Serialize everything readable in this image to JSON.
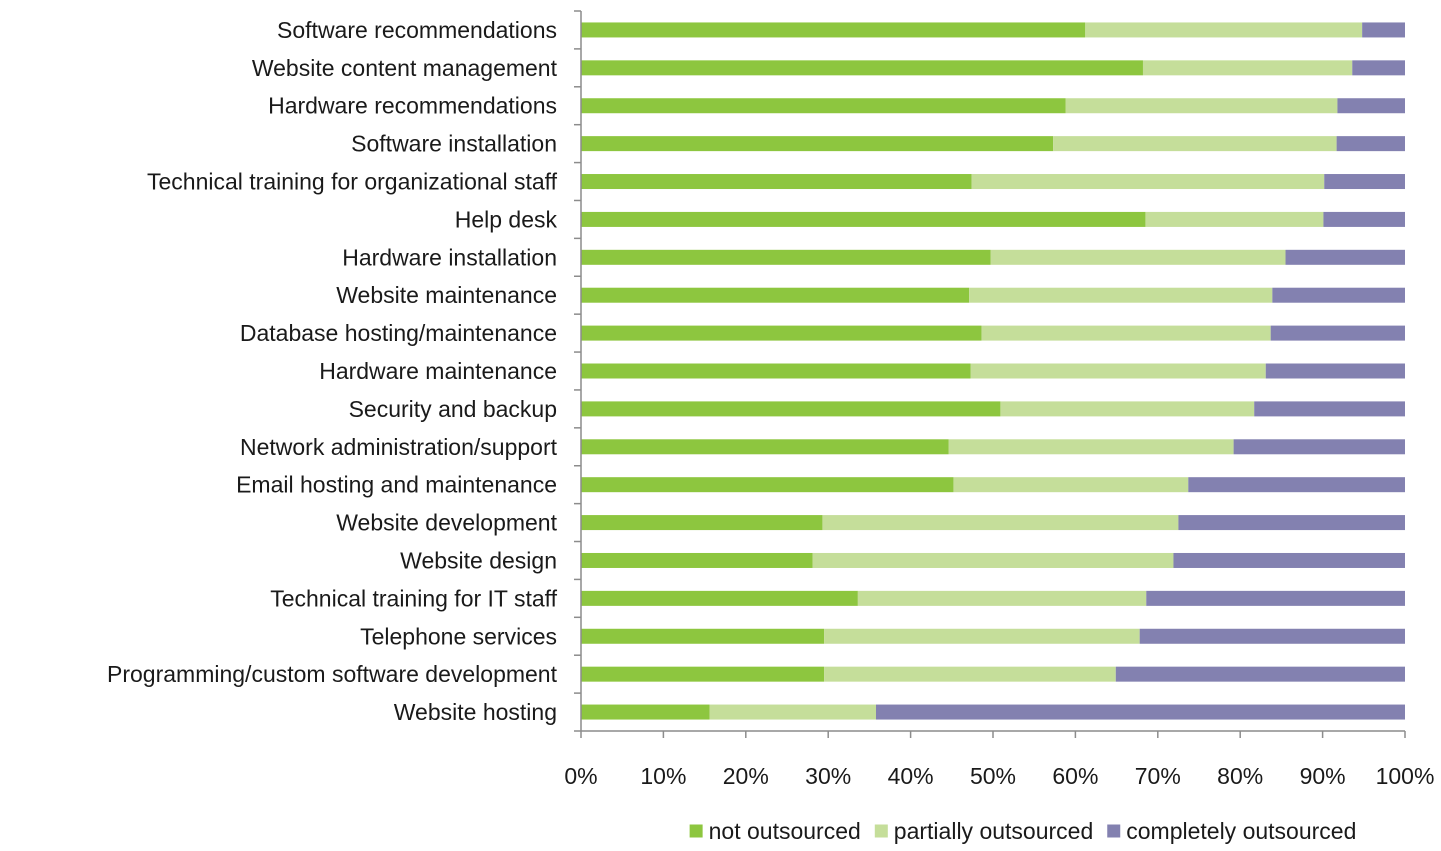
{
  "chart_data": {
    "type": "bar",
    "orientation": "horizontal",
    "stacked": "percent",
    "title": "",
    "xlabel": "",
    "ylabel": "",
    "xlim": [
      0,
      100
    ],
    "x_ticks": [
      "0%",
      "10%",
      "20%",
      "30%",
      "40%",
      "50%",
      "60%",
      "70%",
      "80%",
      "90%",
      "100%"
    ],
    "grid": false,
    "legend_position": "bottom",
    "categories": [
      "Software recommendations",
      "Website content management",
      "Hardware recommendations",
      "Software installation",
      "Technical training for organizational staff",
      "Help desk",
      "Hardware installation",
      "Website maintenance",
      "Database hosting/maintenance",
      "Hardware maintenance",
      "Security and backup",
      "Network administration/support",
      "Email hosting and maintenance",
      "Website development",
      "Website design",
      "Technical training for IT staff",
      "Telephone services",
      "Programming/custom software development",
      "Website hosting"
    ],
    "series": [
      {
        "name": "not outsourced",
        "color": "#8dc63f",
        "values": [
          61.2,
          68.2,
          58.8,
          57.3,
          47.4,
          68.5,
          49.7,
          47.1,
          48.6,
          47.3,
          50.9,
          44.6,
          45.2,
          29.3,
          28.1,
          33.6,
          29.5,
          29.5,
          15.6
        ]
      },
      {
        "name": "partially outsourced",
        "color": "#c5de9a",
        "values": [
          33.6,
          25.4,
          33.0,
          34.4,
          42.8,
          21.6,
          35.8,
          36.8,
          35.1,
          35.8,
          30.8,
          34.6,
          28.5,
          43.2,
          43.8,
          35.0,
          38.3,
          35.4,
          20.2
        ]
      },
      {
        "name": "completely outsourced",
        "color": "#8381b0",
        "values": [
          5.2,
          6.4,
          8.2,
          8.3,
          9.8,
          9.9,
          14.5,
          16.1,
          16.3,
          16.9,
          18.3,
          20.8,
          26.3,
          27.5,
          28.1,
          31.4,
          32.2,
          35.1,
          64.2
        ]
      }
    ]
  }
}
